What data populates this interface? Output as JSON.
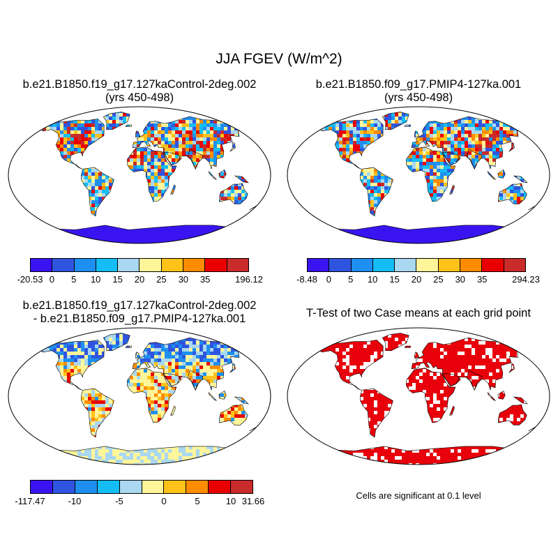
{
  "main_title": "JJA FGEV (W/m^2)",
  "panels": [
    {
      "id": "p1",
      "title_line1": "b.e21.B1850.f19_g17.127kaControl-2deg.002",
      "title_line2": "(yrs 450-498)"
    },
    {
      "id": "p2",
      "title_line1": "b.e21.B1850.f09_g17.PMIP4-127ka.001",
      "title_line2": "(yrs 450-498)"
    },
    {
      "id": "p3",
      "title_line1": "b.e21.B1850.f19_g17.127kaControl-2deg.002",
      "title_line2": "- b.e21.B1850.f09_g17.PMIP4-127ka.001"
    },
    {
      "id": "p4",
      "title_line1": "T-Test of two Case means at each grid point",
      "title_line2": ""
    }
  ],
  "colorbars": [
    {
      "colors": [
        "#3a14f0",
        "#2f55e0",
        "#1e8ff0",
        "#14bdf5",
        "#a9d8f0",
        "#fff59a",
        "#ffc21a",
        "#ff8c00",
        "#ea0000",
        "#c92a2a"
      ],
      "labels": [
        "-20.53",
        "0",
        "5",
        "10",
        "15",
        "20",
        "25",
        "30",
        "35",
        "196.12"
      ]
    },
    {
      "colors": [
        "#3a14f0",
        "#2f55e0",
        "#1e8ff0",
        "#14bdf5",
        "#a9d8f0",
        "#fff59a",
        "#ffc21a",
        "#ff8c00",
        "#ea0000",
        "#c92a2a"
      ],
      "labels": [
        "-8.48",
        "0",
        "5",
        "10",
        "15",
        "20",
        "25",
        "30",
        "35",
        "294.23"
      ]
    },
    {
      "colors": [
        "#3a14f0",
        "#2f55e0",
        "#1e8ff0",
        "#14bdf5",
        "#a9d8f0",
        "#fff59a",
        "#ffc21a",
        "#ff8c00",
        "#ea0000",
        "#c92a2a"
      ],
      "labels": [
        "-117.47",
        "-10",
        "-5",
        "0",
        "5",
        "10",
        "31.66"
      ]
    }
  ],
  "significance_note": "Cells are significant at 0.1 level",
  "colors": {
    "land_sig": "#e8000b",
    "ocean": "#ffffff"
  }
}
